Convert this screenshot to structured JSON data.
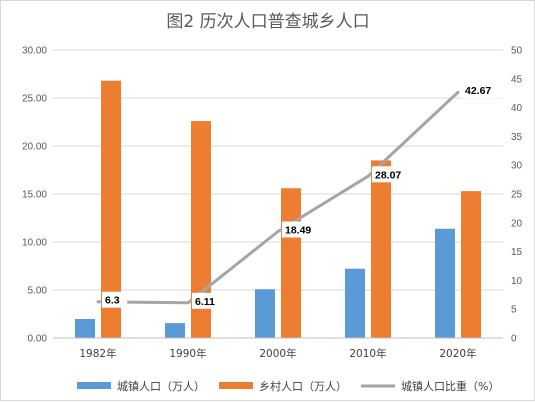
{
  "chart_data": {
    "type": "bar",
    "title": "图2  历次人口普查城乡人口",
    "categories": [
      "1982年",
      "1990年",
      "2000年",
      "2010年",
      "2020年"
    ],
    "series": [
      {
        "name": "城镇人口（万人）",
        "type": "bar",
        "axis": "left",
        "color": "#5b9bd5",
        "values": [
          1.98,
          1.55,
          5.08,
          7.22,
          11.38
        ]
      },
      {
        "name": "乡村人口（万人）",
        "type": "bar",
        "axis": "left",
        "color": "#ed7d31",
        "values": [
          26.8,
          22.6,
          15.6,
          18.5,
          15.3
        ]
      },
      {
        "name": "城镇人口比重（%）",
        "type": "line",
        "axis": "right",
        "color": "#a5a5a5",
        "values": [
          6.3,
          6.11,
          18.49,
          28.07,
          42.67
        ],
        "labels": [
          "6.3",
          "6.11",
          "18.49",
          "28.07",
          "42.67"
        ]
      }
    ],
    "ylim_left": [
      0,
      30
    ],
    "ylim_right": [
      0,
      50
    ],
    "left_ticks": [
      "0.00",
      "5.00",
      "10.00",
      "15.00",
      "20.00",
      "25.00",
      "30.00"
    ],
    "right_ticks": [
      "0",
      "5",
      "10",
      "15",
      "20",
      "25",
      "30",
      "35",
      "40",
      "45",
      "50"
    ],
    "grid": true,
    "legend_position": "bottom"
  }
}
